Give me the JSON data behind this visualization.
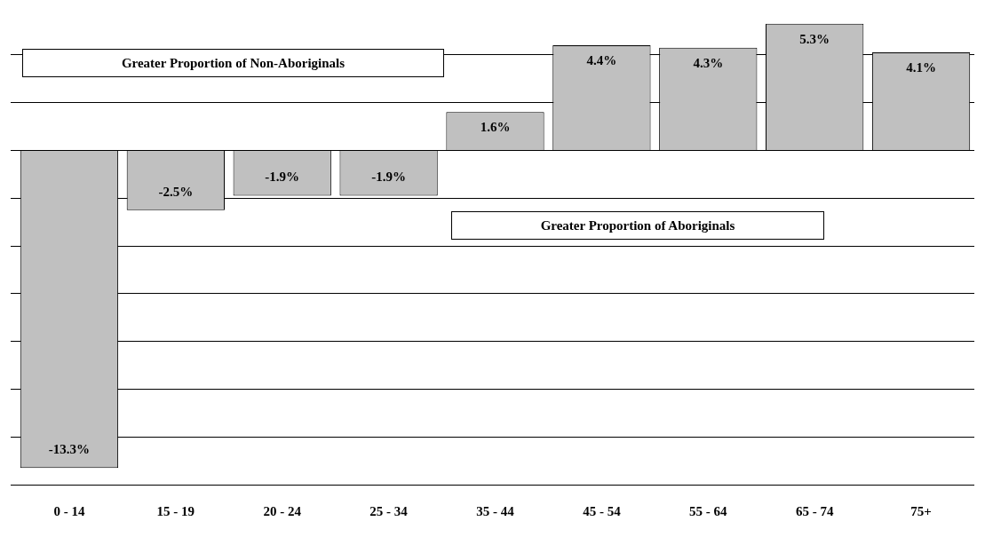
{
  "chart_data": {
    "type": "bar",
    "categories": [
      "0 - 14",
      "15 - 19",
      "20 - 24",
      "25 - 34",
      "35 - 44",
      "45 - 54",
      "55 - 64",
      "65 - 74",
      "75+"
    ],
    "values": [
      -13.3,
      -2.5,
      -1.9,
      -1.9,
      1.6,
      4.4,
      4.3,
      5.3,
      4.1
    ],
    "value_labels": [
      "-13.3%",
      "-2.5%",
      "-1.9%",
      "-1.9%",
      "1.6%",
      "4.4%",
      "4.3%",
      "5.3%",
      "4.1%"
    ],
    "color": "#c0c0c0",
    "tick_labels": "x",
    "grid": "y",
    "legend": false,
    "annotations": [
      "Greater Proportion of Non-Aboriginals",
      "Greater Proportion of Aboriginals"
    ]
  }
}
